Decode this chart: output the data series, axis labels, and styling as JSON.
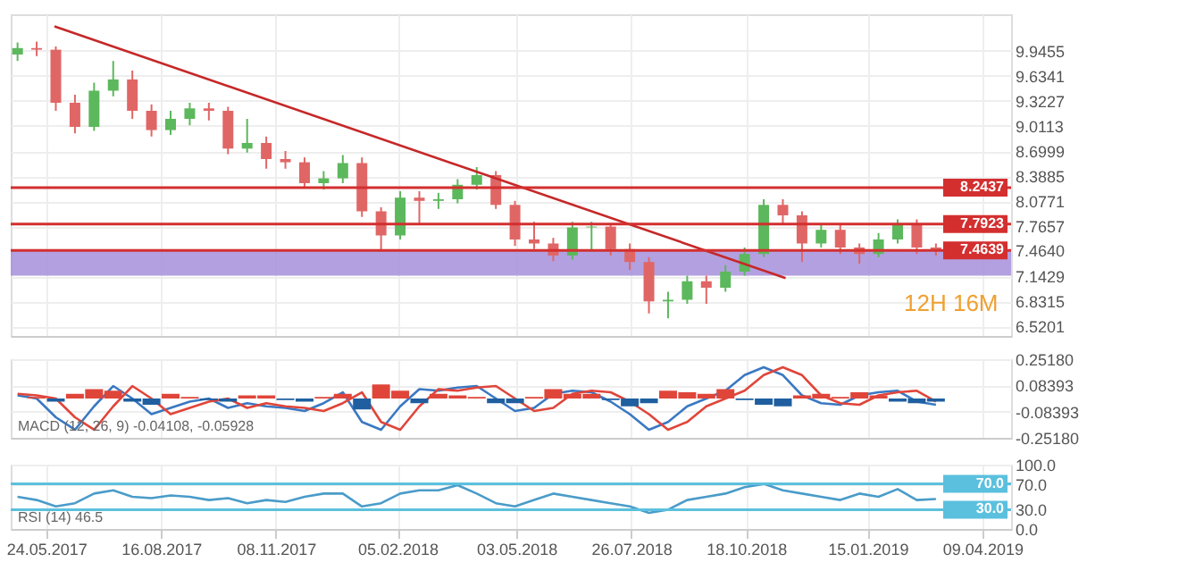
{
  "chart_data": [
    {
      "type": "candlestick",
      "tick_labels": "y",
      "grid": true,
      "x": [
        "2017-05-03",
        "2017-05-17",
        "2017-05-31",
        "2017-06-14",
        "2017-06-28",
        "2017-07-12",
        "2017-07-26",
        "2017-08-09",
        "2017-08-23",
        "2017-09-06",
        "2017-09-20",
        "2017-10-04",
        "2017-10-18",
        "2017-11-01",
        "2017-11-15",
        "2017-11-29",
        "2017-12-13",
        "2017-12-27",
        "2018-01-10",
        "2018-01-24",
        "2018-02-07",
        "2018-02-21",
        "2018-03-07",
        "2018-03-21",
        "2018-04-04",
        "2018-04-18",
        "2018-05-02",
        "2018-05-16",
        "2018-05-30",
        "2018-06-13",
        "2018-06-27",
        "2018-07-11",
        "2018-07-25",
        "2018-08-08",
        "2018-08-22",
        "2018-09-05",
        "2018-09-19",
        "2018-10-03",
        "2018-10-17",
        "2018-10-31",
        "2018-11-14",
        "2018-11-28",
        "2018-12-12",
        "2018-12-26",
        "2019-01-09",
        "2019-01-23",
        "2019-02-06",
        "2019-02-20",
        "2019-03-06"
      ],
      "ohlc": [
        [
          9.9,
          10.05,
          9.82,
          9.98
        ],
        [
          9.98,
          10.06,
          9.88,
          9.96
        ],
        [
          9.96,
          10.0,
          9.2,
          9.3
        ],
        [
          9.3,
          9.4,
          8.92,
          9.0
        ],
        [
          9.0,
          9.55,
          8.95,
          9.45
        ],
        [
          9.45,
          9.82,
          9.38,
          9.59
        ],
        [
          9.59,
          9.7,
          9.1,
          9.2
        ],
        [
          9.2,
          9.28,
          8.88,
          8.96
        ],
        [
          8.96,
          9.2,
          8.9,
          9.1
        ],
        [
          9.1,
          9.3,
          9.02,
          9.23
        ],
        [
          9.23,
          9.3,
          9.08,
          9.2
        ],
        [
          9.2,
          9.25,
          8.66,
          8.73
        ],
        [
          8.73,
          9.1,
          8.68,
          8.8
        ],
        [
          8.8,
          8.88,
          8.48,
          8.6
        ],
        [
          8.6,
          8.7,
          8.48,
          8.56
        ],
        [
          8.56,
          8.62,
          8.24,
          8.3
        ],
        [
          8.3,
          8.45,
          8.22,
          8.36
        ],
        [
          8.36,
          8.65,
          8.3,
          8.55
        ],
        [
          8.55,
          8.62,
          7.88,
          7.95
        ],
        [
          7.95,
          8.0,
          7.47,
          7.65
        ],
        [
          7.65,
          8.2,
          7.6,
          8.12
        ],
        [
          8.12,
          8.2,
          7.8,
          8.08
        ],
        [
          8.08,
          8.18,
          7.98,
          8.1
        ],
        [
          8.1,
          8.35,
          8.05,
          8.28
        ],
        [
          8.28,
          8.5,
          8.22,
          8.4
        ],
        [
          8.4,
          8.45,
          7.98,
          8.03
        ],
        [
          8.03,
          8.08,
          7.52,
          7.6
        ],
        [
          7.6,
          7.82,
          7.48,
          7.55
        ],
        [
          7.55,
          7.62,
          7.33,
          7.4
        ],
        [
          7.4,
          7.82,
          7.35,
          7.75
        ],
        [
          7.75,
          7.82,
          7.45,
          7.76
        ],
        [
          7.76,
          7.8,
          7.4,
          7.48
        ],
        [
          7.48,
          7.55,
          7.22,
          7.32
        ],
        [
          7.32,
          7.38,
          6.68,
          6.83
        ],
        [
          6.83,
          6.95,
          6.62,
          6.85
        ],
        [
          6.85,
          7.15,
          6.8,
          7.08
        ],
        [
          7.08,
          7.15,
          6.8,
          7.0
        ],
        [
          7.0,
          7.28,
          6.95,
          7.2
        ],
        [
          7.2,
          7.5,
          7.15,
          7.42
        ],
        [
          7.42,
          8.1,
          7.38,
          8.03
        ],
        [
          8.03,
          8.1,
          7.8,
          7.9
        ],
        [
          7.9,
          7.95,
          7.32,
          7.55
        ],
        [
          7.55,
          7.8,
          7.5,
          7.72
        ],
        [
          7.72,
          7.78,
          7.42,
          7.5
        ],
        [
          7.5,
          7.55,
          7.3,
          7.42
        ],
        [
          7.42,
          7.68,
          7.38,
          7.6
        ],
        [
          7.6,
          7.85,
          7.55,
          7.8
        ],
        [
          7.8,
          7.85,
          7.42,
          7.5
        ],
        [
          7.5,
          7.55,
          7.4,
          7.46
        ]
      ],
      "colors": [
        "#5cb85c",
        "#e06666",
        "#e06666",
        "#e06666",
        "#5cb85c",
        "#5cb85c",
        "#e06666",
        "#e06666",
        "#5cb85c",
        "#5cb85c",
        "#e06666",
        "#e06666",
        "#5cb85c",
        "#e06666",
        "#e06666",
        "#e06666",
        "#5cb85c",
        "#5cb85c",
        "#e06666",
        "#e06666",
        "#5cb85c",
        "#e06666",
        "#5cb85c",
        "#5cb85c",
        "#5cb85c",
        "#e06666",
        "#e06666",
        "#e06666",
        "#e06666",
        "#5cb85c",
        "#5cb85c",
        "#e06666",
        "#e06666",
        "#e06666",
        "#5cb85c",
        "#5cb85c",
        "#e06666",
        "#5cb85c",
        "#5cb85c",
        "#5cb85c",
        "#e06666",
        "#e06666",
        "#5cb85c",
        "#e06666",
        "#e06666",
        "#5cb85c",
        "#5cb85c",
        "#e06666",
        "#e06666"
      ],
      "series": [
        {
          "type": "line",
          "x": [
            "2017-05-30",
            "2018-11-16"
          ],
          "values": [
            10.25,
            7.12
          ],
          "color": "#c62828"
        }
      ],
      "xlim": [
        "2017-04-28",
        "2019-04-30"
      ],
      "xticks": [
        {
          "value": "2017-05-24",
          "label": null
        },
        {
          "value": "2017-08-16",
          "label": null
        },
        {
          "value": "2017-11-08",
          "label": null
        },
        {
          "value": "2018-02-05",
          "label": null
        },
        {
          "value": "2018-05-03",
          "label": null
        },
        {
          "value": "2018-07-26",
          "label": null
        },
        {
          "value": "2018-10-18",
          "label": null
        },
        {
          "value": "2019-01-15",
          "label": null
        },
        {
          "value": "2019-04-09",
          "label": null
        }
      ],
      "ylim": [
        6.4,
        10.4
      ],
      "yticks": [
        9.9455,
        9.6341,
        9.3227,
        9.0113,
        8.6999,
        8.3885,
        8.0771,
        7.7657,
        {
          "value": 7.464,
          "label": "7.4640"
        },
        7.1429,
        6.8315,
        6.5201
      ],
      "ref_lines": [
        {
          "axis": "y",
          "value": 8.2437,
          "label": "8.2437",
          "color": "#d32f2f"
        },
        {
          "axis": "y",
          "value": 7.7923,
          "label": "7.7923",
          "color": "#d32f2f"
        },
        {
          "axis": "y",
          "value": 7.4639,
          "label": "7.4639",
          "color": "#d32f2f"
        }
      ],
      "bands": [
        {
          "axis": "y",
          "from": 7.15,
          "to": 7.46,
          "color": "#a68fdb"
        }
      ],
      "annotations": [
        "12H 16M"
      ]
    },
    {
      "type": "bar",
      "tick_labels": "y",
      "grid": true,
      "x": [
        "2017-05-03",
        "2017-05-17",
        "2017-05-31",
        "2017-06-14",
        "2017-06-28",
        "2017-07-12",
        "2017-07-26",
        "2017-08-09",
        "2017-08-23",
        "2017-09-06",
        "2017-09-20",
        "2017-10-04",
        "2017-10-18",
        "2017-11-01",
        "2017-11-15",
        "2017-11-29",
        "2017-12-13",
        "2017-12-27",
        "2018-01-10",
        "2018-01-24",
        "2018-02-07",
        "2018-02-21",
        "2018-03-07",
        "2018-03-21",
        "2018-04-04",
        "2018-04-18",
        "2018-05-02",
        "2018-05-16",
        "2018-05-30",
        "2018-06-13",
        "2018-06-27",
        "2018-07-11",
        "2018-07-25",
        "2018-08-08",
        "2018-08-22",
        "2018-09-05",
        "2018-09-19",
        "2018-10-03",
        "2018-10-17",
        "2018-10-31",
        "2018-11-14",
        "2018-11-28",
        "2018-12-12",
        "2018-12-26",
        "2019-01-09",
        "2019-01-23",
        "2019-02-06",
        "2019-02-20",
        "2019-03-06"
      ],
      "series": [
        {
          "type": "bar",
          "values": [
            0.0,
            0.01,
            -0.02,
            0.03,
            0.06,
            0.05,
            -0.02,
            -0.04,
            0.03,
            0.01,
            -0.01,
            -0.02,
            0.02,
            0.02,
            -0.01,
            -0.02,
            0.01,
            0.03,
            -0.07,
            0.09,
            0.05,
            -0.03,
            0.03,
            0.02,
            0.01,
            -0.03,
            -0.03,
            0.01,
            0.06,
            0.03,
            0.03,
            -0.01,
            -0.05,
            -0.03,
            0.05,
            0.04,
            0.03,
            0.06,
            -0.01,
            -0.04,
            -0.05,
            0.02,
            0.03,
            0.01,
            0.04,
            0.02,
            -0.02,
            -0.03,
            -0.02
          ],
          "colors": [
            "#e0453a",
            "#e0453a",
            "#1f5fa0",
            "#e0453a",
            "#e0453a",
            "#e0453a",
            "#1f5fa0",
            "#1f5fa0",
            "#e0453a",
            "#e0453a",
            "#1f5fa0",
            "#1f5fa0",
            "#e0453a",
            "#e0453a",
            "#1f5fa0",
            "#1f5fa0",
            "#e0453a",
            "#e0453a",
            "#1f5fa0",
            "#e0453a",
            "#e0453a",
            "#1f5fa0",
            "#e0453a",
            "#e0453a",
            "#e0453a",
            "#1f5fa0",
            "#1f5fa0",
            "#e0453a",
            "#e0453a",
            "#e0453a",
            "#e0453a",
            "#1f5fa0",
            "#1f5fa0",
            "#1f5fa0",
            "#e0453a",
            "#e0453a",
            "#e0453a",
            "#e0453a",
            "#1f5fa0",
            "#1f5fa0",
            "#1f5fa0",
            "#e0453a",
            "#e0453a",
            "#e0453a",
            "#e0453a",
            "#e0453a",
            "#1f5fa0",
            "#1f5fa0",
            "#1f5fa0"
          ]
        },
        {
          "type": "line",
          "color": "#3a78c2",
          "values": [
            0.02,
            0.0,
            -0.12,
            -0.2,
            -0.05,
            0.08,
            0.0,
            -0.1,
            -0.06,
            -0.02,
            0.0,
            -0.06,
            -0.03,
            -0.05,
            -0.06,
            -0.08,
            -0.03,
            0.04,
            -0.15,
            -0.2,
            -0.05,
            0.06,
            0.05,
            0.07,
            0.08,
            0.0,
            -0.08,
            -0.06,
            0.03,
            0.05,
            0.04,
            -0.02,
            -0.1,
            -0.2,
            -0.15,
            -0.05,
            0.0,
            0.05,
            0.15,
            0.2,
            0.15,
            0.02,
            -0.03,
            -0.04,
            0.02,
            0.04,
            0.05,
            -0.02,
            -0.04
          ]
        },
        {
          "type": "line",
          "color": "#e0453a",
          "values": [
            0.03,
            0.02,
            0.0,
            -0.12,
            -0.2,
            -0.05,
            0.08,
            0.0,
            -0.1,
            -0.06,
            -0.02,
            0.0,
            -0.06,
            -0.03,
            -0.05,
            -0.06,
            -0.08,
            -0.03,
            0.04,
            -0.15,
            -0.2,
            -0.05,
            0.06,
            0.05,
            0.07,
            0.08,
            0.0,
            -0.08,
            -0.06,
            0.03,
            0.05,
            0.04,
            -0.02,
            -0.1,
            -0.2,
            -0.15,
            -0.05,
            0.0,
            0.05,
            0.15,
            0.2,
            0.15,
            0.02,
            -0.03,
            -0.04,
            0.02,
            0.04,
            0.05,
            -0.02
          ]
        }
      ],
      "xlim": [
        "2017-04-28",
        "2019-04-30"
      ],
      "xticks": [
        {
          "value": "2017-05-24",
          "label": null
        },
        {
          "value": "2017-08-16",
          "label": null
        },
        {
          "value": "2017-11-08",
          "label": null
        },
        {
          "value": "2018-02-05",
          "label": null
        },
        {
          "value": "2018-05-03",
          "label": null
        },
        {
          "value": "2018-07-26",
          "label": null
        },
        {
          "value": "2018-10-18",
          "label": null
        },
        {
          "value": "2019-01-15",
          "label": null
        },
        {
          "value": "2019-04-09",
          "label": null
        }
      ],
      "ylim": [
        -0.2518,
        0.2518
      ],
      "yticks": [
        {
          "value": 0.2518,
          "label": "0.25180"
        },
        {
          "value": 0.08393,
          "label": "0.08393"
        },
        {
          "value": -0.08393,
          "label": "-0.08393"
        },
        {
          "value": -0.2518,
          "label": "-0.25180"
        }
      ],
      "annotations": [
        "MACD (12, 26, 9) -0.04108, -0.05928"
      ]
    },
    {
      "type": "line",
      "grid": true,
      "color": "#4a9cc9",
      "x": [
        "2017-05-03",
        "2017-05-17",
        "2017-05-31",
        "2017-06-14",
        "2017-06-28",
        "2017-07-12",
        "2017-07-26",
        "2017-08-09",
        "2017-08-23",
        "2017-09-06",
        "2017-09-20",
        "2017-10-04",
        "2017-10-18",
        "2017-11-01",
        "2017-11-15",
        "2017-11-29",
        "2017-12-13",
        "2017-12-27",
        "2018-01-10",
        "2018-01-24",
        "2018-02-07",
        "2018-02-21",
        "2018-03-07",
        "2018-03-21",
        "2018-04-04",
        "2018-04-18",
        "2018-05-02",
        "2018-05-16",
        "2018-05-30",
        "2018-06-13",
        "2018-06-27",
        "2018-07-11",
        "2018-07-25",
        "2018-08-08",
        "2018-08-22",
        "2018-09-05",
        "2018-09-19",
        "2018-10-03",
        "2018-10-17",
        "2018-10-31",
        "2018-11-14",
        "2018-11-28",
        "2018-12-12",
        "2018-12-26",
        "2019-01-09",
        "2019-01-23",
        "2019-02-06",
        "2019-02-20",
        "2019-03-06"
      ],
      "values": [
        50,
        45,
        35,
        40,
        55,
        60,
        50,
        48,
        52,
        50,
        45,
        48,
        40,
        45,
        42,
        50,
        55,
        55,
        35,
        40,
        55,
        60,
        60,
        68,
        55,
        40,
        35,
        45,
        55,
        50,
        45,
        40,
        35,
        25,
        30,
        45,
        50,
        55,
        65,
        70,
        60,
        55,
        50,
        45,
        55,
        50,
        62,
        45,
        46.5
      ],
      "xlim": [
        "2017-04-28",
        "2019-04-30"
      ],
      "xticks": [
        {
          "value": "2017-05-24",
          "label": "24.05.2017"
        },
        {
          "value": "2017-08-16",
          "label": "16.08.2017"
        },
        {
          "value": "2017-11-08",
          "label": "08.11.2017"
        },
        {
          "value": "2018-02-05",
          "label": "05.02.2018"
        },
        {
          "value": "2018-05-03",
          "label": "03.05.2018"
        },
        {
          "value": "2018-07-26",
          "label": "26.07.2018"
        },
        {
          "value": "2018-10-18",
          "label": "18.10.2018"
        },
        {
          "value": "2019-01-15",
          "label": "15.01.2019"
        },
        {
          "value": "2019-04-09",
          "label": "09.04.2019"
        }
      ],
      "ylim": [
        0,
        100
      ],
      "yticks": [
        {
          "value": 100,
          "label": "100.0"
        },
        {
          "value": 70,
          "label": "70.0"
        },
        {
          "value": 30,
          "label": "30.0"
        },
        {
          "value": 0,
          "label": "0.0"
        }
      ],
      "ref_lines": [
        {
          "axis": "y",
          "value": 70,
          "label": "70.0",
          "color": "#5bc0de"
        },
        {
          "axis": "y",
          "value": 30,
          "label": "30.0",
          "color": "#5bc0de"
        }
      ],
      "annotations": [
        "RSI (14) 46.5"
      ]
    }
  ]
}
